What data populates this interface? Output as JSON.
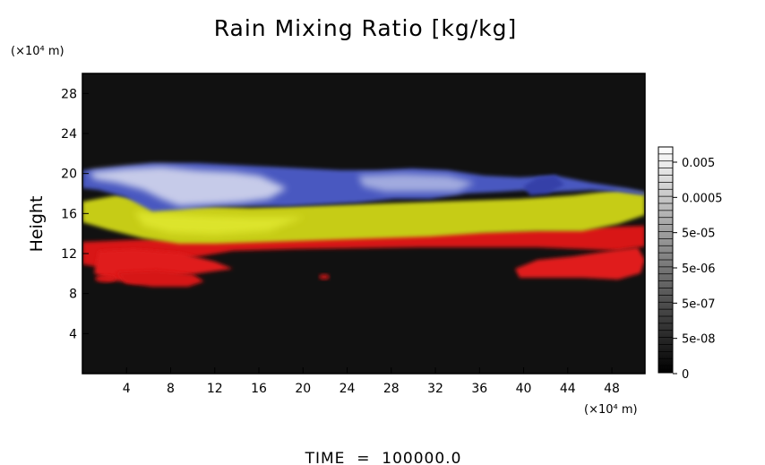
{
  "chart_data": {
    "type": "heatmap",
    "title": "Rain Mixing Ratio [kg/kg]",
    "ylabel": "Height",
    "xlabel": "",
    "x_unit_label": "(×10⁴ m)",
    "y_unit_label": "(×10⁴ m)",
    "footer": "TIME  =  100000.0",
    "xlim": [
      0,
      51
    ],
    "ylim": [
      0,
      30
    ],
    "x_ticks": [
      "4",
      "8",
      "12",
      "16",
      "20",
      "24",
      "28",
      "32",
      "36",
      "40",
      "44",
      "48"
    ],
    "y_ticks": [
      "4",
      "8",
      "12",
      "16",
      "20",
      "24",
      "28"
    ],
    "colorbar": {
      "labels": [
        "0.005",
        "0.0005",
        "5e-05",
        "5e-06",
        "5e-07",
        "5e-08",
        "0"
      ]
    },
    "colors": {
      "background": "#111111",
      "low_layer": "#e01818",
      "mid_layer": "#c8d018",
      "high_layer": "#5a68c8",
      "high_layer_light": "#d8dcec"
    }
  }
}
